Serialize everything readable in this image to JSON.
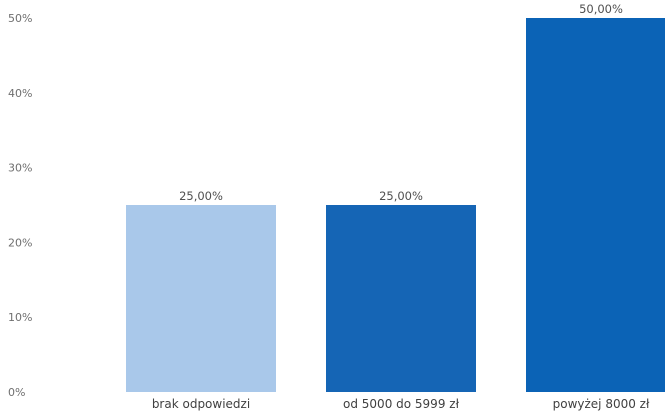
{
  "chart_data": {
    "type": "bar",
    "categories": [
      "brak odpowiedzi",
      "od 5000 do 5999 zł",
      "powyżej 8000 zł"
    ],
    "values": [
      25,
      25,
      50
    ],
    "value_labels": [
      "25,00%",
      "25,00%",
      "50,00%"
    ],
    "colors": [
      "#a9c8ea",
      "#1565b5",
      "#0b63b6"
    ],
    "y_ticks": [
      0,
      10,
      20,
      30,
      40,
      50
    ],
    "y_tick_labels": [
      "0%",
      "10%",
      "20%",
      "30%",
      "40%",
      "50%"
    ],
    "ylim": [
      0,
      50
    ],
    "grid": false,
    "legend": "none",
    "title": "",
    "xlabel": "",
    "ylabel": ""
  }
}
